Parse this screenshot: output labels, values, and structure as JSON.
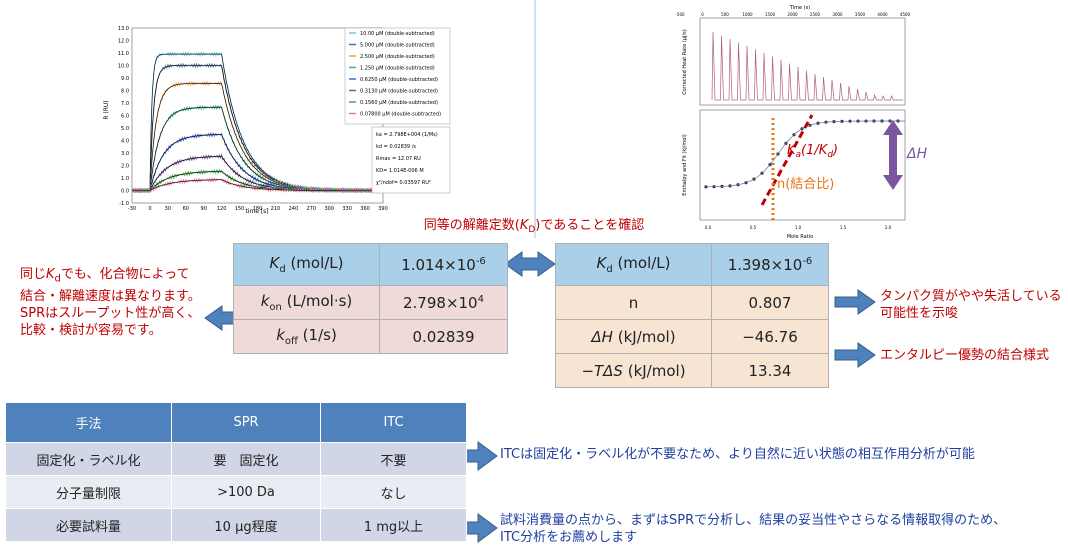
{
  "spr_chart": {
    "y_label": "R (RU)",
    "x_label": "time [s]",
    "yticks": [
      "13.0",
      "12.0",
      "11.0",
      "10.0",
      "9.0",
      "8.0",
      "7.0",
      "6.0",
      "5.0",
      "4.0",
      "3.0",
      "2.0",
      "1.0",
      "0.0",
      "-1.0"
    ],
    "xticks": [
      "-30",
      "0",
      "30",
      "60",
      "90",
      "120",
      "150",
      "180",
      "210",
      "240",
      "270",
      "300",
      "330",
      "360",
      "390"
    ],
    "legend": [
      "10.00 µM (double-subtracted)",
      "5.000 µM (double-subtracted)",
      "2.500 µM (double-subtracted)",
      "1.250 µM (double-subtracted)",
      "0.6250 µM (double-subtracted)",
      "0.3130 µM (double-subtracted)",
      "0.1560 µM (double-subtracted)",
      "0.07800 µM (double-subtracted)"
    ],
    "fit": [
      "ka = 2.798E+004 (1/Ms)",
      "kd = 0.02839 /s",
      "Rmax = 12.07 RU",
      "KD= 1.014E-006 M",
      "χ²/ndof= 0.03597 RU²"
    ]
  },
  "itc_chart": {
    "top_axis_label": "Time (s)",
    "top_ticks": [
      "-500",
      "0",
      "500",
      "1000",
      "1500",
      "2000",
      "2500",
      "3000",
      "3500",
      "4000",
      "4500"
    ],
    "top_y_label": "Corrected Heat Rate (µJ/s)",
    "bottom_y_label": "Enthalpy and Fit (kJ/mol)",
    "x_label": "Mole Ratio",
    "x_ticks": [
      "0.0",
      "0.5",
      "1.0",
      "1.5",
      "2.0"
    ],
    "ka": {
      "k1": "K",
      "s1": "a",
      "mid": "(1/",
      "k2": "K",
      "s2": "d",
      "end": ")"
    },
    "n_label": "n(結合比)",
    "dh_label": "ΔH"
  },
  "confirm_note": {
    "before": "同等の解離定数(",
    "k": "K",
    "sub": "D",
    "after": ")であることを確認"
  },
  "left_note": {
    "l1a": "同じ",
    "k": "K",
    "sub": "d",
    "l1b": "でも、化合物によって",
    "l2": "結合・解離速度は異なります。",
    "l3": "SPRはスループット性が高く、",
    "l4": "比較・検討が容易です。"
  },
  "spr_table": {
    "rows": [
      {
        "k": "K",
        "sub": "d",
        "unit": " (mol/L)",
        "val": "1.014×10",
        "exp": "-6"
      },
      {
        "k": "k",
        "sub": "on",
        "unit": " (L/mol·s)",
        "val": "2.798×10",
        "exp": "4"
      },
      {
        "k": "k",
        "sub": "off",
        "unit": " (1/s)",
        "val": "0.02839"
      }
    ]
  },
  "itc_table": {
    "header": {
      "k": "K",
      "sub": "d",
      "unit": " (mol/L)",
      "val": "1.398×10",
      "exp": "-6"
    },
    "rows": [
      {
        "label": "n",
        "val": "0.807"
      },
      {
        "sym": "ΔH",
        "unit": " (kJ/mol)",
        "val": "−46.76"
      },
      {
        "sym": "−TΔS",
        "unit": " (kJ/mol)",
        "val": "13.34"
      }
    ]
  },
  "right_notes": {
    "n_note": [
      "タンパク質がやや失活している",
      "可能性を示唆"
    ],
    "s_note": "エンタルピー優勢の結合様式"
  },
  "compare_table": {
    "header": [
      "手法",
      "SPR",
      "ITC"
    ],
    "rows": [
      [
        "固定化・ラベル化",
        "要　固定化",
        "不要"
      ],
      [
        "分子量制限",
        ">100 Da",
        "なし"
      ],
      [
        "必要試料量",
        "10 µg程度",
        "1 mg以上"
      ]
    ]
  },
  "bottom_notes": {
    "label_note": "ITCは固定化・ラベル化が不要なため、より自然に近い状態の相互作用分析が可能",
    "sample_note": [
      "試料消費量の点から、まずはSPRで分析し、結果の妥当性やさらなる情報取得のため、",
      "ITC分析をお薦めします"
    ]
  }
}
